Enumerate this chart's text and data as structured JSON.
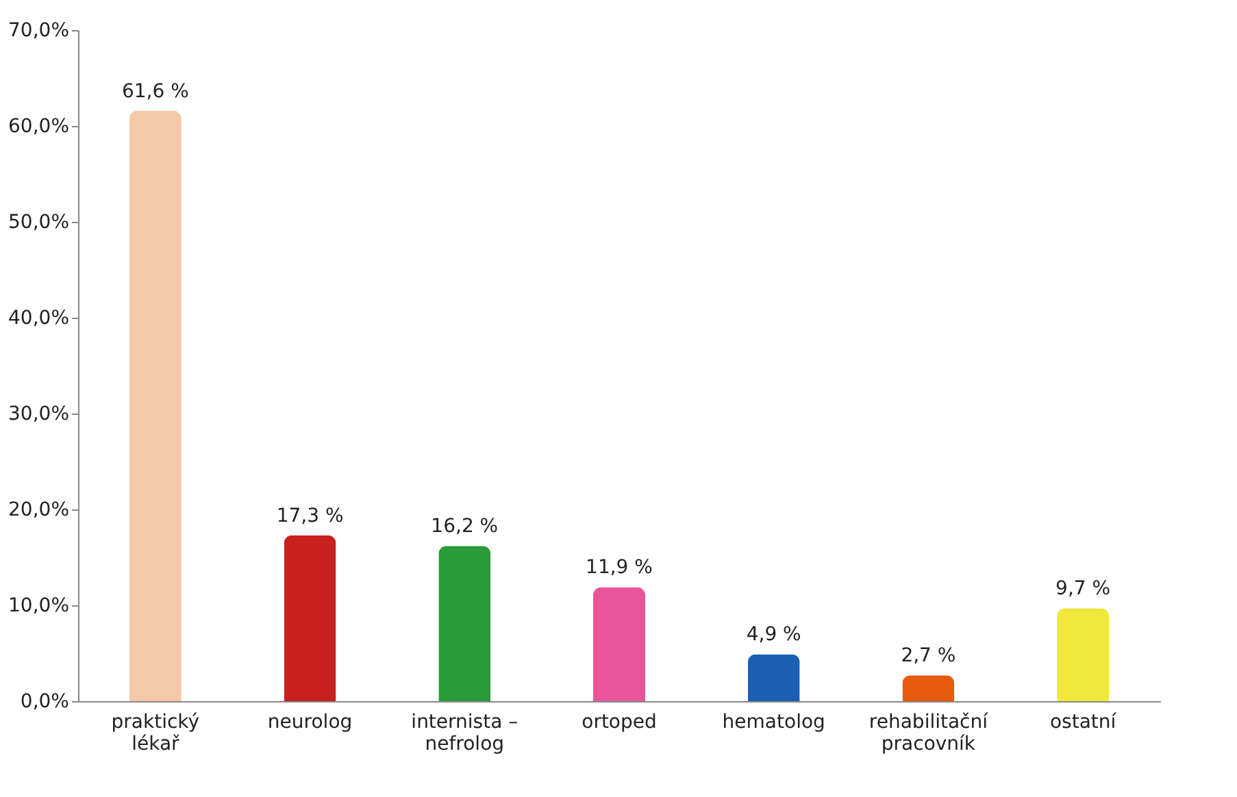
{
  "chart_data": {
    "type": "bar",
    "categories": [
      "praktický\nlékař",
      "neurolog",
      "internista –\nnefrolog",
      "ortoped",
      "hematolog",
      "rehabilitační\npracovník",
      "ostatní"
    ],
    "values": [
      61.6,
      17.3,
      16.2,
      11.9,
      4.9,
      2.7,
      9.7
    ],
    "colors": [
      "#f5c8a8",
      "#c8201e",
      "#2a9a3a",
      "#e8559a",
      "#1a5fb4",
      "#e85a10",
      "#f0e83a"
    ],
    "value_labels": [
      "61,6 %",
      "17,3 %",
      "16,2 %",
      "11,9 %",
      "4,9 %",
      "2,7 %",
      "9,7 %"
    ],
    "ylim": [
      0,
      70
    ],
    "yticks": [
      {
        "value": 0,
        "label": "0,0%"
      },
      {
        "value": 10,
        "label": "10,0%"
      },
      {
        "value": 20,
        "label": "20,0%"
      },
      {
        "value": 30,
        "label": "30,0%"
      },
      {
        "value": 40,
        "label": "40,0%"
      },
      {
        "value": 50,
        "label": "50,0%"
      },
      {
        "value": 60,
        "label": "60,0%"
      },
      {
        "value": 70,
        "label": "70,0%"
      }
    ],
    "grid": false,
    "legend": false
  }
}
